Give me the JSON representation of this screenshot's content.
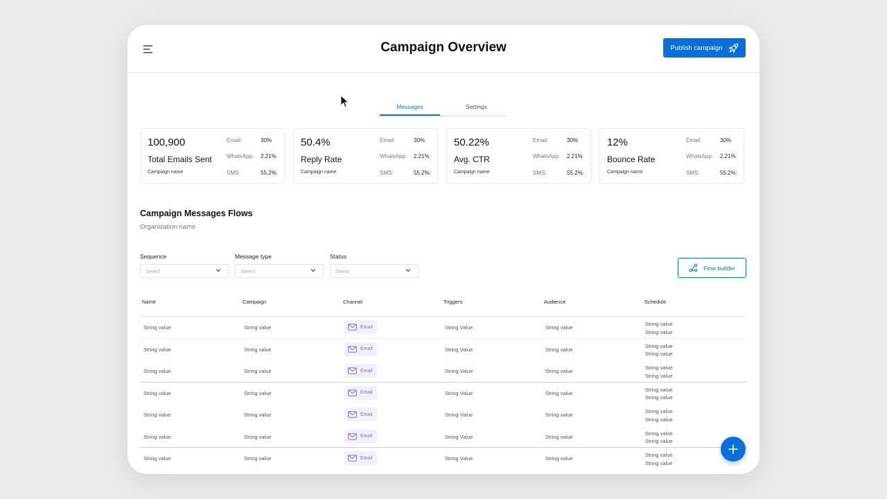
{
  "header": {
    "title": "Campaign Overview",
    "publish_label": "Publish campaign",
    "publish_icon": "rocket-icon",
    "menu_icon": "hamburger-menu-icon"
  },
  "tabs": [
    {
      "label": "Messages",
      "active": true
    },
    {
      "label": "Settings",
      "active": false
    }
  ],
  "stats": [
    {
      "value": "100,900",
      "label": "Total Emails Sent",
      "sub": "Campaign name",
      "breakdown": [
        {
          "k": "Email:",
          "v": "30%"
        },
        {
          "k": "WhatsApp:",
          "v": "2.21%"
        },
        {
          "k": "SMS:",
          "v": "55.2%:"
        }
      ]
    },
    {
      "value": "50.4%",
      "label": "Reply Rate",
      "sub": "Campaign name",
      "breakdown": [
        {
          "k": "Email:",
          "v": "30%"
        },
        {
          "k": "WhatsApp:",
          "v": "2.21%"
        },
        {
          "k": "SMS:",
          "v": "55.2%:"
        }
      ]
    },
    {
      "value": "50.22%",
      "label": "Avg. CTR",
      "sub": "Campaign name",
      "breakdown": [
        {
          "k": "Email:",
          "v": "30%"
        },
        {
          "k": "WhatsApp:",
          "v": "2.21%"
        },
        {
          "k": "SMS:",
          "v": "55.2%:"
        }
      ]
    },
    {
      "value": "12%",
      "label": "Bounce Rate",
      "sub": "Campaign name",
      "breakdown": [
        {
          "k": "Email:",
          "v": "30%"
        },
        {
          "k": "WhatsApp:",
          "v": "2.21%"
        },
        {
          "k": "SMS:",
          "v": "55.2%:"
        }
      ]
    }
  ],
  "section": {
    "title": "Campaign Messages Flows",
    "subtitle": "Organization name"
  },
  "filters": [
    {
      "label": "Sequence",
      "placeholder": "Select"
    },
    {
      "label": "Message type",
      "placeholder": "Select"
    },
    {
      "label": "Status",
      "placeholder": "Select"
    }
  ],
  "flow_builder_label": "Flow builder",
  "table": {
    "columns": [
      "Name",
      "Campaign",
      "Channel",
      "Triggers",
      "Audience",
      "Schedule"
    ],
    "rows": [
      {
        "name": "String value",
        "campaign": "String value",
        "channel": "Email",
        "triggers": "String Value",
        "audience": "String value",
        "schedule": [
          "String value",
          "String value"
        ]
      },
      {
        "name": "String value",
        "campaign": "String value",
        "channel": "Email",
        "triggers": "String Value",
        "audience": "String value",
        "schedule": [
          "String value",
          "String value"
        ]
      },
      {
        "name": "String value",
        "campaign": "String value",
        "channel": "Email",
        "triggers": "String Value",
        "audience": "String value",
        "schedule": [
          "String value",
          "String value"
        ]
      },
      {
        "name": "String value",
        "campaign": "String value",
        "channel": "Email",
        "triggers": "String Value",
        "audience": "String value",
        "schedule": [
          "String value",
          "String value"
        ]
      },
      {
        "name": "String value",
        "campaign": "String value",
        "channel": "Email",
        "triggers": "String Value",
        "audience": "String value",
        "schedule": [
          "String value",
          "String value"
        ]
      },
      {
        "name": "String value",
        "campaign": "String value",
        "channel": "Email",
        "triggers": "String Value",
        "audience": "String value",
        "schedule": [
          "String value",
          "String value"
        ]
      },
      {
        "name": "String value",
        "campaign": "String value",
        "channel": "Email",
        "triggers": "String Value",
        "audience": "String value",
        "schedule": [
          "String value",
          "String value"
        ]
      }
    ]
  },
  "colors": {
    "primary": "#0a6fd6",
    "tab_active": "#1a6fc4",
    "channel_chip_bg": "#f4f0fb",
    "channel_chip_text": "#8b6bc4"
  }
}
